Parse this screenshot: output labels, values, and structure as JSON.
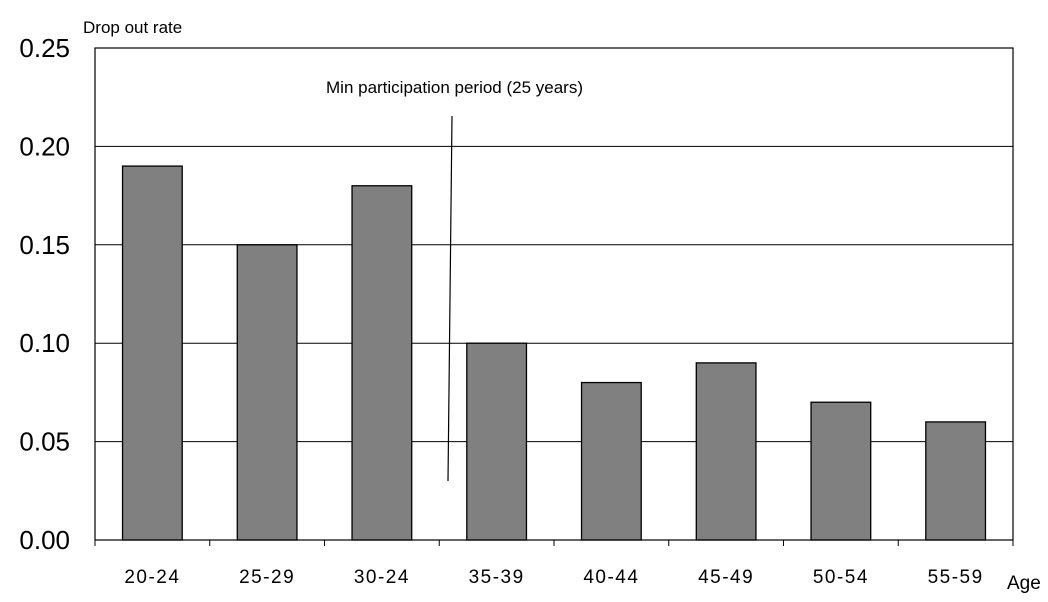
{
  "chart_data": {
    "type": "bar",
    "title": "",
    "ylabel": "Drop out rate",
    "xlabel": "Age",
    "categories": [
      "20-24",
      "25-29",
      "30-24",
      "35-39",
      "40-44",
      "45-49",
      "50-54",
      "55-59"
    ],
    "values": [
      0.19,
      0.15,
      0.18,
      0.1,
      0.08,
      0.09,
      0.07,
      0.06
    ],
    "ylim": [
      0,
      0.25
    ],
    "yticks": [
      "0.00",
      "0.05",
      "0.10",
      "0.15",
      "0.20",
      "0.25"
    ],
    "grid": "horizontal",
    "legend": "none",
    "annotations": [
      {
        "text": "Min participation period (25 years)",
        "points_to": "between 30-24 and 35-39"
      }
    ],
    "colors": {
      "bar_fill": "#808080",
      "bar_stroke": "#000000",
      "grid": "#000000"
    }
  }
}
